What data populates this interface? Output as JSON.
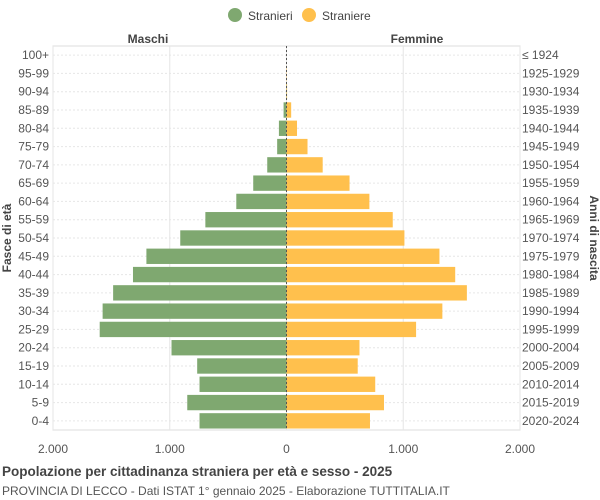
{
  "chart_data": {
    "type": "bar",
    "orientation": "horizontal-population-pyramid",
    "title": "Popolazione per cittadinanza straniera per età e sesso - 2025",
    "subtitle": "PROVINCIA DI LECCO - Dati ISTAT 1° gennaio 2025 - Elaborazione TUTTITALIA.IT",
    "left_header": "Maschi",
    "right_header": "Femmine",
    "ylabel_left": "Fasce di età",
    "ylabel_right": "Anni di nascita",
    "legend_position": "top-center",
    "xlim": [
      -2000,
      2000
    ],
    "x_ticks": [
      -2000,
      -1000,
      0,
      1000,
      2000
    ],
    "x_tick_labels": [
      "2.000",
      "1.000",
      "0",
      "1.000",
      "2.000"
    ],
    "grid": true,
    "colors": {
      "male": "#7fa870",
      "female": "#ffc04d"
    },
    "categories": [
      "100+",
      "95-99",
      "90-94",
      "85-89",
      "80-84",
      "75-79",
      "70-74",
      "65-69",
      "60-64",
      "55-59",
      "50-54",
      "45-49",
      "40-44",
      "35-39",
      "30-34",
      "25-29",
      "20-24",
      "15-19",
      "10-14",
      "5-9",
      "0-4"
    ],
    "birth_years": [
      "≤ 1924",
      "1925-1929",
      "1930-1934",
      "1935-1939",
      "1940-1944",
      "1945-1949",
      "1950-1954",
      "1955-1959",
      "1960-1964",
      "1965-1969",
      "1970-1974",
      "1975-1979",
      "1980-1984",
      "1985-1989",
      "1990-1994",
      "1995-1999",
      "2000-2004",
      "2005-2009",
      "2010-2014",
      "2015-2019",
      "2020-2024"
    ],
    "series": [
      {
        "name": "Stranieri",
        "values": [
          0,
          0,
          2,
          25,
          65,
          80,
          165,
          285,
          430,
          695,
          910,
          1200,
          1315,
          1485,
          1575,
          1600,
          985,
          765,
          745,
          850,
          745
        ]
      },
      {
        "name": "Straniere",
        "values": [
          0,
          3,
          5,
          40,
          90,
          180,
          310,
          540,
          710,
          910,
          1010,
          1310,
          1445,
          1545,
          1335,
          1110,
          625,
          610,
          760,
          835,
          715
        ]
      }
    ]
  }
}
